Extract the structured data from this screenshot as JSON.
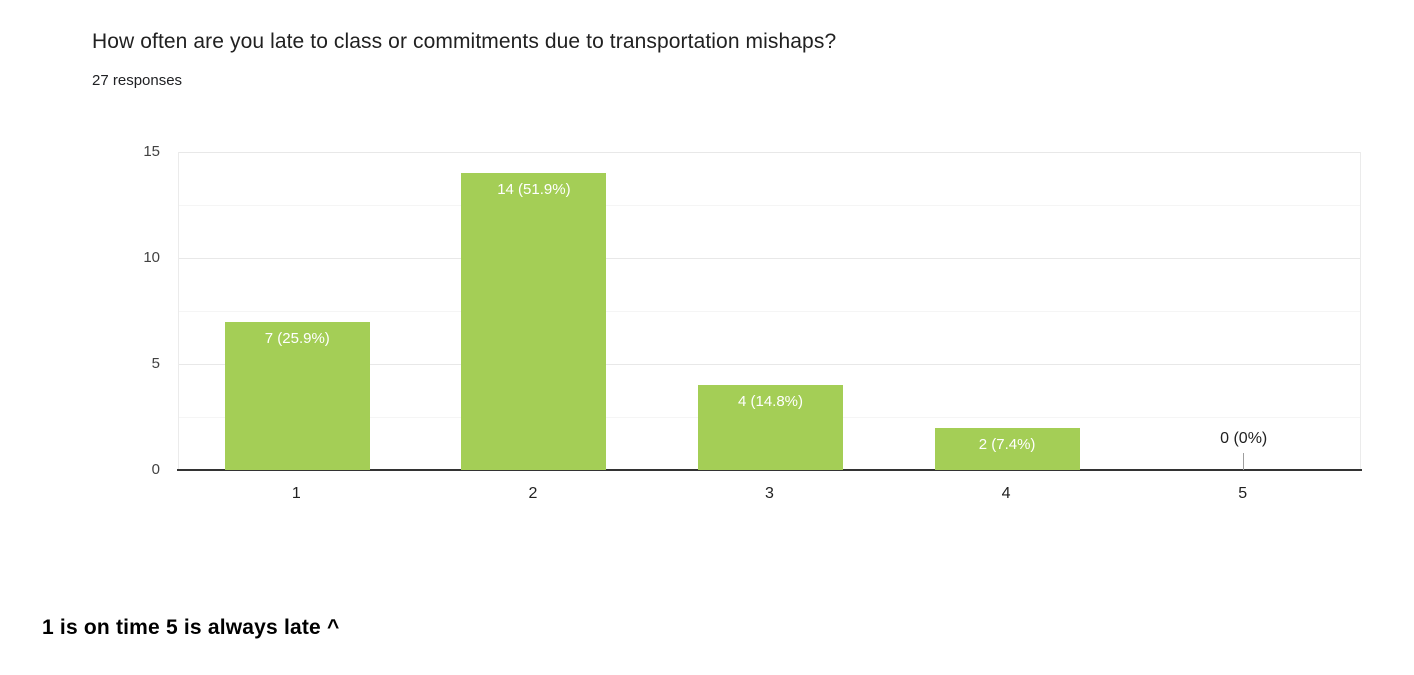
{
  "header": {
    "title": "How often are you late to class or commitments due to transportation mishaps?",
    "responses": "27 responses"
  },
  "chart_data": {
    "type": "bar",
    "categories": [
      "1",
      "2",
      "3",
      "4",
      "5"
    ],
    "values": [
      7,
      14,
      4,
      2,
      0
    ],
    "bar_labels": [
      "7 (25.9%)",
      "14 (51.9%)",
      "4 (14.8%)",
      "2 (7.4%)",
      "0 (0%)"
    ],
    "title": "How often are you late to class or commitments due to transportation mishaps?",
    "subtitle": "27 responses",
    "xlabel": "",
    "ylabel": "",
    "ylim": [
      0,
      15
    ],
    "yticks": [
      0,
      5,
      10,
      15
    ],
    "minor_gridlines": [
      2.5,
      7.5,
      12.5
    ],
    "grid": true,
    "legend": "none",
    "bar_color": "#a4ce56",
    "bar_label_color": "#ffffff",
    "zero_label_color": "#212121",
    "axis_line_color": "#333333"
  },
  "footer": {
    "note": "1 is on time 5 is always late ^"
  }
}
